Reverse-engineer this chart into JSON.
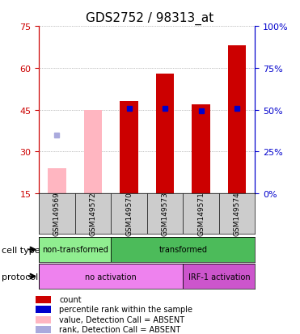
{
  "title": "GDS2752 / 98313_at",
  "samples": [
    "GSM149569",
    "GSM149572",
    "GSM149570",
    "GSM149573",
    "GSM149571",
    "GSM149574"
  ],
  "ylim_left": [
    15,
    75
  ],
  "ylim_right": [
    0,
    100
  ],
  "yticks_left": [
    15,
    30,
    45,
    60,
    75
  ],
  "yticks_right": [
    0,
    25,
    50,
    75,
    100
  ],
  "red_bars": [
    null,
    null,
    48,
    58,
    47,
    68
  ],
  "pink_bars": [
    24,
    45,
    null,
    null,
    null,
    null
  ],
  "blue_squares": [
    null,
    null,
    45.5,
    45.5,
    44.5,
    45.5
  ],
  "lavender_squares": [
    36,
    null,
    null,
    null,
    null,
    null
  ],
  "cell_type_groups": [
    {
      "label": "non-transformed",
      "start": 0,
      "end": 2,
      "color": "#90EE90"
    },
    {
      "label": "transformed",
      "start": 2,
      "end": 6,
      "color": "#4CBB5A"
    }
  ],
  "protocol_groups": [
    {
      "label": "no activation",
      "start": 0,
      "end": 4,
      "color": "#EE82EE"
    },
    {
      "label": "IRF-1 activation",
      "start": 4,
      "end": 6,
      "color": "#CC55CC"
    }
  ],
  "bar_width": 0.5,
  "red_color": "#CC0000",
  "pink_color": "#FFB6C1",
  "blue_color": "#0000CC",
  "lavender_color": "#AAAADD",
  "grid_color": "#888888",
  "left_axis_color": "#CC0000",
  "right_axis_color": "#0000CC",
  "legend_items": [
    {
      "color": "#CC0000",
      "label": "count"
    },
    {
      "color": "#0000CC",
      "label": "percentile rank within the sample"
    },
    {
      "color": "#FFB6C1",
      "label": "value, Detection Call = ABSENT"
    },
    {
      "color": "#AAAADD",
      "label": "rank, Detection Call = ABSENT"
    }
  ]
}
